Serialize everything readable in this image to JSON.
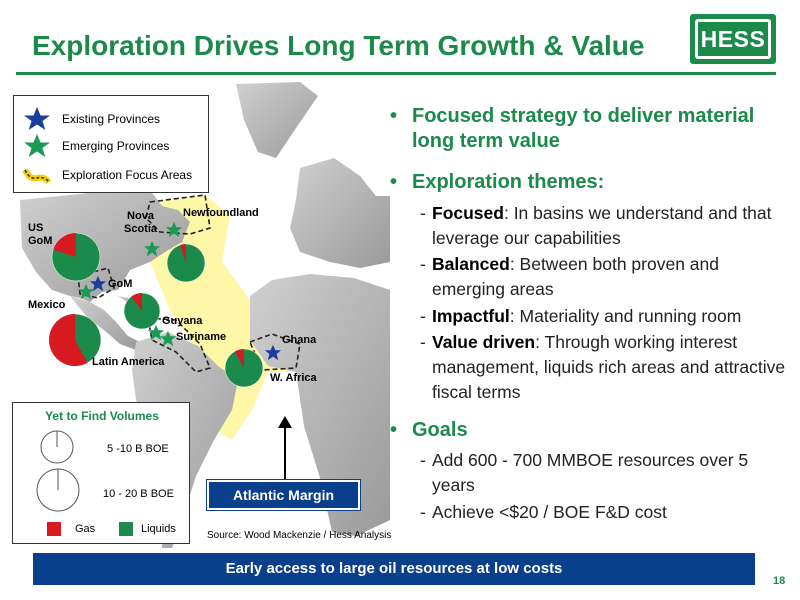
{
  "header": {
    "title": "Exploration Drives Long Term Growth & Value",
    "logo_text": "HESS"
  },
  "map": {
    "legend": {
      "existing": "Existing Provinces",
      "emerging": "Emerging Provinces",
      "focus": "Exploration Focus Areas"
    },
    "labels": {
      "us_gom": "US\nGoM",
      "nova_scotia": "Nova\nScotia",
      "newfoundland": "Newfoundland",
      "gom": "GoM",
      "mexico": "Mexico",
      "guyana": "Guyana",
      "suriname": "Suriname",
      "latin_america": "Latin America",
      "ghana": "Ghana",
      "w_africa": "W. Africa"
    },
    "yet_to_find": {
      "title": "Yet to Find Volumes",
      "small": "5 -10 B BOE",
      "large": "10 - 20 B BOE",
      "gas": "Gas",
      "liquids": "Liquids"
    },
    "callout": "Atlantic Margin",
    "source": "Source: Wood Mackenzie / Hess Analysis",
    "pie_shares": {
      "us_gom_gas": 0.2,
      "newfoundland_gas": 0.05,
      "mexico_gas": 0.58,
      "guyana_gas": 0.1,
      "w_africa_gas": 0.08
    }
  },
  "bullets": {
    "b1": "Focused strategy to deliver material long term value",
    "b2": "Exploration themes:",
    "t1_bold": "Focused",
    "t1_rest": ": In basins we understand and that leverage our capabilities",
    "t2_bold": "Balanced",
    "t2_rest": ": Between both proven and emerging areas",
    "t3_bold": "Impactful",
    "t3_rest": ": Materiality and running room",
    "t4_bold": "Value driven",
    "t4_rest": ": Through working interest management, liquids rich areas and attractive fiscal terms",
    "b3": "Goals",
    "g1": "Add 600 - 700 MMBOE resources over 5 years",
    "g2": "Achieve <$20 / BOE F&D cost"
  },
  "banner": "Early access to large oil resources at low costs",
  "page_number": "18",
  "colors": {
    "brand_green": "#1b8a4b",
    "banner_blue": "#0a3f8c",
    "gas_red": "#d71920",
    "liquids_green": "#1b8a4b",
    "focus_yellow": "#fff7a8",
    "land_gray": "#bdbdbd"
  }
}
